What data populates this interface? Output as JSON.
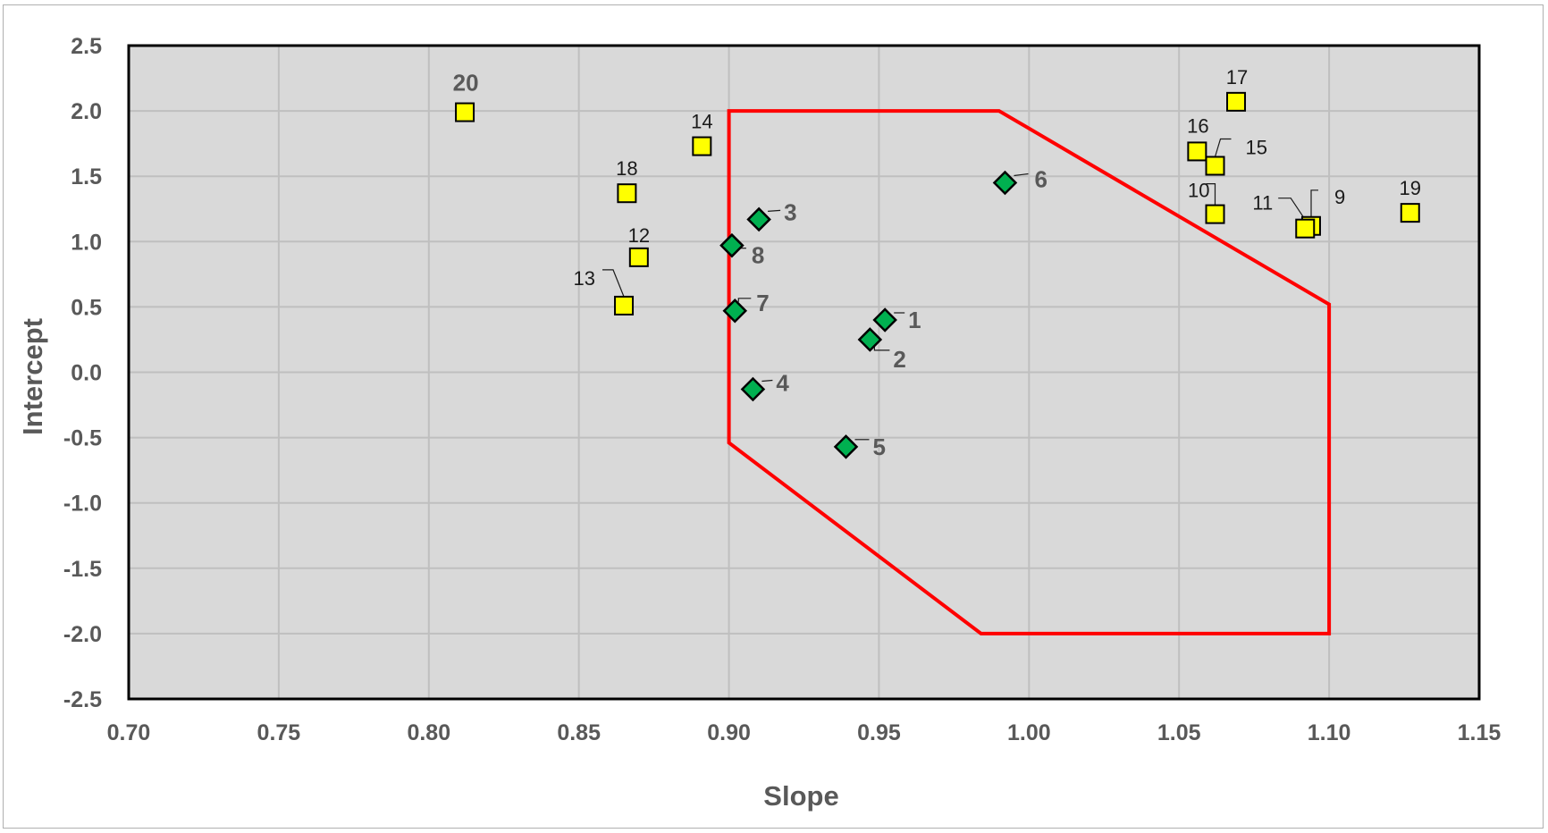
{
  "chart_data": {
    "type": "scatter",
    "title": "",
    "xlabel": "Slope",
    "ylabel": "Intercept",
    "xlim": [
      0.7,
      1.15
    ],
    "ylim": [
      -2.5,
      2.5
    ],
    "x_ticks": [
      "0.70",
      "0.75",
      "0.80",
      "0.85",
      "0.90",
      "0.95",
      "1.00",
      "1.05",
      "1.10",
      "1.15"
    ],
    "y_ticks": [
      "2.5",
      "2.0",
      "1.5",
      "1.0",
      "0.5",
      "0.0",
      "-0.5",
      "-1.0",
      "-1.5",
      "-2.0",
      "-2.5"
    ],
    "grid": true,
    "legend": "none",
    "colors": {
      "plot_background": "#d9d9d9",
      "gridline": "#bfbfbf",
      "acceptance_region": "#ff0000",
      "inside_marker": "#00b050",
      "outside_marker": "#ffff00",
      "marker_edge": "#000000",
      "label_text": "#595959"
    },
    "acceptance_region": [
      {
        "x": 0.9,
        "y": 2.0
      },
      {
        "x": 0.99,
        "y": 2.0
      },
      {
        "x": 1.1,
        "y": 0.52
      },
      {
        "x": 1.1,
        "y": -2.0
      },
      {
        "x": 0.984,
        "y": -2.0
      },
      {
        "x": 0.9,
        "y": -0.54
      }
    ],
    "series": [
      {
        "marker": "diamond",
        "color": "#00b050",
        "points": [
          {
            "label": "1",
            "x": 0.952,
            "y": 0.4
          },
          {
            "label": "2",
            "x": 0.947,
            "y": 0.25
          },
          {
            "label": "3",
            "x": 0.91,
            "y": 1.17
          },
          {
            "label": "4",
            "x": 0.908,
            "y": -0.13
          },
          {
            "label": "5",
            "x": 0.939,
            "y": -0.57
          },
          {
            "label": "6",
            "x": 0.992,
            "y": 1.45
          },
          {
            "label": "7",
            "x": 0.902,
            "y": 0.47
          },
          {
            "label": "8",
            "x": 0.901,
            "y": 0.97
          }
        ]
      },
      {
        "marker": "square",
        "color": "#ffff00",
        "points": [
          {
            "label": "9",
            "x": 1.094,
            "y": 1.12
          },
          {
            "label": "10",
            "x": 1.062,
            "y": 1.21
          },
          {
            "label": "11",
            "x": 1.092,
            "y": 1.1
          },
          {
            "label": "12",
            "x": 0.87,
            "y": 0.88
          },
          {
            "label": "13",
            "x": 0.865,
            "y": 0.51
          },
          {
            "label": "14",
            "x": 0.891,
            "y": 1.73
          },
          {
            "label": "15",
            "x": 1.062,
            "y": 1.58
          },
          {
            "label": "16",
            "x": 1.056,
            "y": 1.69
          },
          {
            "label": "17",
            "x": 1.069,
            "y": 2.07
          },
          {
            "label": "18",
            "x": 0.866,
            "y": 1.37
          },
          {
            "label": "19",
            "x": 1.127,
            "y": 1.22
          },
          {
            "label": "20",
            "x": 0.812,
            "y": 1.99
          }
        ]
      }
    ]
  }
}
